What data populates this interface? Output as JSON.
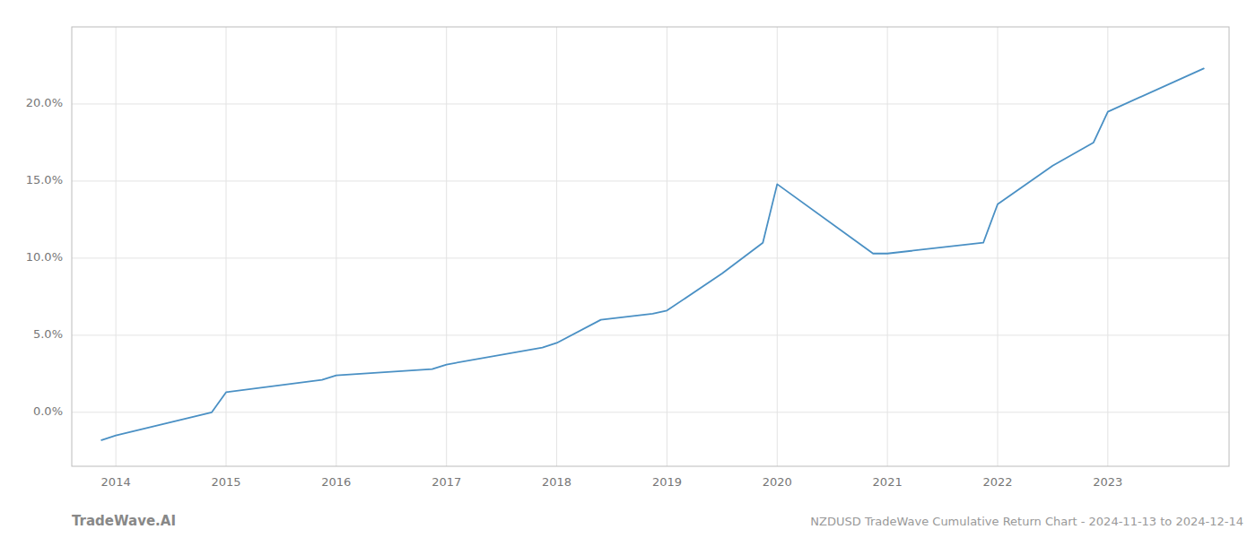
{
  "chart_data": {
    "type": "line",
    "title": "NZDUSD TradeWave Cumulative Return Chart - 2024-11-13 to 2024-12-14",
    "annotations": [
      "TradeWave.AI"
    ],
    "x": [
      2013.87,
      2014.0,
      2014.87,
      2015.0,
      2015.87,
      2016.0,
      2016.87,
      2017.0,
      2017.87,
      2018.0,
      2018.4,
      2018.87,
      2019.0,
      2019.5,
      2019.87,
      2020.0,
      2020.87,
      2021.0,
      2021.87,
      2022.0,
      2022.5,
      2022.87,
      2023.0,
      2023.87
    ],
    "values": [
      -1.8,
      -1.5,
      0.0,
      1.3,
      2.1,
      2.4,
      2.8,
      3.1,
      4.2,
      4.5,
      6.0,
      6.4,
      6.6,
      9.0,
      11.0,
      14.8,
      10.3,
      10.3,
      11.0,
      13.5,
      16.0,
      17.5,
      19.5,
      22.3
    ],
    "color": "#4a90c4",
    "xlim": [
      2013.6,
      2024.1
    ],
    "ylim": [
      -3.5,
      25.0
    ],
    "xticks": [
      2014,
      2015,
      2016,
      2017,
      2018,
      2019,
      2020,
      2021,
      2022,
      2023
    ],
    "yticks": [
      {
        "value": 0.0,
        "label": "0.0%"
      },
      {
        "value": 5.0,
        "label": "5.0%"
      },
      {
        "value": 10.0,
        "label": "10.0%"
      },
      {
        "value": 15.0,
        "label": "15.0%"
      },
      {
        "value": 20.0,
        "label": "20.0%"
      }
    ],
    "grid": true
  }
}
